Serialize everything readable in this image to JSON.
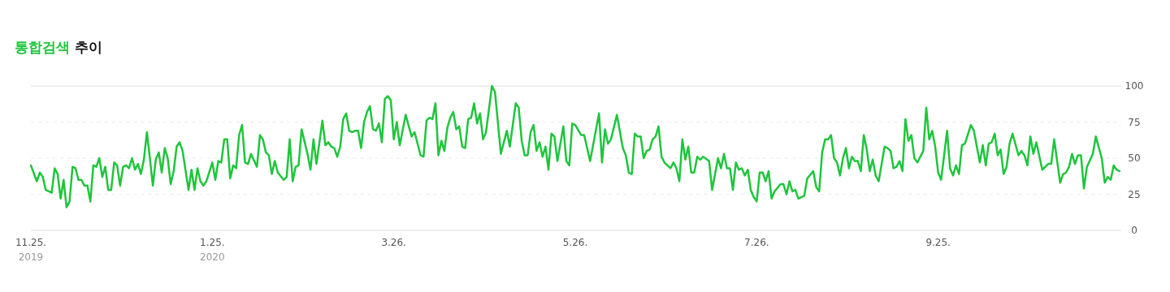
{
  "chart_data": {
    "type": "line",
    "title": "통합검색 추이",
    "grid": "y",
    "line_style": "solid",
    "xlim": [
      "2019-11-25",
      "2020-11-25"
    ],
    "ylim": [
      0,
      100
    ],
    "yticks": [
      0,
      25,
      50,
      75,
      100
    ],
    "xticks": [
      {
        "value": "2019-11-25",
        "label": "11.25.\n2019"
      },
      {
        "value": "2020-01-25",
        "label": "1.25.\n2020"
      },
      {
        "value": "2020-03-26",
        "label": "3.26."
      },
      {
        "value": "2020-05-26",
        "label": "5.26."
      },
      {
        "value": "2020-07-26",
        "label": "7.26."
      },
      {
        "value": "2020-09-25",
        "label": "9.25."
      }
    ],
    "series": [
      {
        "color": "#1ec53c",
        "x": [
          "2019-11-25",
          "2019-11-27",
          "2019-11-28",
          "2019-11-29",
          "2019-11-30",
          "2019-12-01",
          "2019-12-02",
          "2019-12-03",
          "2019-12-04",
          "2019-12-05",
          "2019-12-06",
          "2019-12-07",
          "2019-12-08",
          "2019-12-09",
          "2019-12-10",
          "2019-12-11",
          "2019-12-12",
          "2019-12-13",
          "2019-12-14",
          "2019-12-15",
          "2019-12-16",
          "2019-12-17",
          "2019-12-18",
          "2019-12-19",
          "2019-12-20",
          "2019-12-21",
          "2019-12-22",
          "2019-12-23",
          "2019-12-24",
          "2019-12-25",
          "2019-12-26",
          "2019-12-27",
          "2019-12-28",
          "2019-12-29",
          "2019-12-30",
          "2019-12-31",
          "2020-01-01",
          "2020-01-02",
          "2020-01-03",
          "2020-01-04",
          "2020-01-05",
          "2020-01-06",
          "2020-01-07",
          "2020-01-08",
          "2020-01-09",
          "2020-01-10",
          "2020-01-11",
          "2020-01-12",
          "2020-01-13",
          "2020-01-14",
          "2020-01-15",
          "2020-01-17",
          "2020-01-18",
          "2020-01-19",
          "2020-01-20",
          "2020-01-21",
          "2020-01-22",
          "2020-01-23",
          "2020-01-25",
          "2020-01-26",
          "2020-01-27",
          "2020-01-28",
          "2020-01-29",
          "2020-01-30",
          "2020-01-31",
          "2020-02-01",
          "2020-02-02",
          "2020-02-03",
          "2020-02-04",
          "2020-02-05",
          "2020-02-06",
          "2020-02-07",
          "2020-02-09",
          "2020-02-10",
          "2020-02-11",
          "2020-02-12",
          "2020-02-13",
          "2020-02-14",
          "2020-02-15",
          "2020-02-16",
          "2020-02-18",
          "2020-02-19",
          "2020-02-20",
          "2020-02-21",
          "2020-02-22",
          "2020-02-23",
          "2020-02-24",
          "2020-02-26",
          "2020-02-27",
          "2020-02-28",
          "2020-02-29",
          "2020-03-02",
          "2020-03-03",
          "2020-03-04",
          "2020-03-05",
          "2020-03-06",
          "2020-03-07",
          "2020-03-08",
          "2020-03-09",
          "2020-03-10",
          "2020-03-11",
          "2020-03-12",
          "2020-03-13",
          "2020-03-14",
          "2020-03-15",
          "2020-03-16",
          "2020-03-17",
          "2020-03-18",
          "2020-03-19",
          "2020-03-20",
          "2020-03-21",
          "2020-03-22",
          "2020-03-23",
          "2020-03-24",
          "2020-03-25",
          "2020-03-26",
          "2020-03-27",
          "2020-03-28",
          "2020-03-30",
          "2020-04-01",
          "2020-04-02",
          "2020-04-04",
          "2020-04-05",
          "2020-04-06",
          "2020-04-07",
          "2020-04-08",
          "2020-04-09",
          "2020-04-10",
          "2020-04-11",
          "2020-04-12",
          "2020-04-13",
          "2020-04-14",
          "2020-04-15",
          "2020-04-16",
          "2020-04-17",
          "2020-04-18",
          "2020-04-19",
          "2020-04-20",
          "2020-04-21",
          "2020-04-22",
          "2020-04-23",
          "2020-04-24",
          "2020-04-25",
          "2020-04-26",
          "2020-04-28",
          "2020-04-29",
          "2020-05-01",
          "2020-05-03",
          "2020-05-04",
          "2020-05-06",
          "2020-05-07",
          "2020-05-08",
          "2020-05-09",
          "2020-05-10",
          "2020-05-11",
          "2020-05-12",
          "2020-05-13",
          "2020-05-14",
          "2020-05-15",
          "2020-05-16",
          "2020-05-17",
          "2020-05-18",
          "2020-05-19",
          "2020-05-20",
          "2020-05-22",
          "2020-05-23",
          "2020-05-24",
          "2020-05-25",
          "2020-05-26",
          "2020-05-28",
          "2020-05-29",
          "2020-05-31",
          "2020-06-03",
          "2020-06-04",
          "2020-06-05",
          "2020-06-06",
          "2020-06-07",
          "2020-06-09",
          "2020-06-11",
          "2020-06-12",
          "2020-06-13",
          "2020-06-14",
          "2020-06-15",
          "2020-06-16",
          "2020-06-17",
          "2020-06-18",
          "2020-06-19",
          "2020-06-20",
          "2020-06-21",
          "2020-06-22",
          "2020-06-23",
          "2020-06-24",
          "2020-06-25",
          "2020-06-27",
          "2020-06-28",
          "2020-06-29",
          "2020-06-30",
          "2020-07-01",
          "2020-07-02",
          "2020-07-03",
          "2020-07-04",
          "2020-07-05",
          "2020-07-06",
          "2020-07-07",
          "2020-07-08",
          "2020-07-10",
          "2020-07-11",
          "2020-07-13",
          "2020-07-14",
          "2020-07-15",
          "2020-07-16",
          "2020-07-17",
          "2020-07-18",
          "2020-07-19",
          "2020-07-20",
          "2020-07-21",
          "2020-07-22",
          "2020-07-23",
          "2020-07-24",
          "2020-07-25",
          "2020-07-26",
          "2020-07-27",
          "2020-07-28",
          "2020-07-29",
          "2020-07-30",
          "2020-07-31",
          "2020-08-01",
          "2020-08-03",
          "2020-08-04",
          "2020-08-05",
          "2020-08-06",
          "2020-08-07",
          "2020-08-08",
          "2020-08-09",
          "2020-08-11",
          "2020-08-12",
          "2020-08-14",
          "2020-08-15",
          "2020-08-16",
          "2020-08-17",
          "2020-08-18",
          "2020-08-19",
          "2020-08-20",
          "2020-08-21",
          "2020-08-22",
          "2020-08-23",
          "2020-08-24",
          "2020-08-25",
          "2020-08-26",
          "2020-08-27",
          "2020-08-28",
          "2020-08-29",
          "2020-08-30",
          "2020-08-31",
          "2020-09-01",
          "2020-09-02",
          "2020-09-03",
          "2020-09-04",
          "2020-09-05",
          "2020-09-07",
          "2020-09-08",
          "2020-09-09",
          "2020-09-10",
          "2020-09-11",
          "2020-09-12",
          "2020-09-13",
          "2020-09-14",
          "2020-09-15",
          "2020-09-16",
          "2020-09-17",
          "2020-09-18",
          "2020-09-20",
          "2020-09-21",
          "2020-09-22",
          "2020-09-23",
          "2020-09-24",
          "2020-09-25",
          "2020-09-26",
          "2020-09-28",
          "2020-09-29",
          "2020-09-30",
          "2020-10-01",
          "2020-10-02",
          "2020-10-03",
          "2020-10-04",
          "2020-10-06",
          "2020-10-07",
          "2020-10-09",
          "2020-10-10",
          "2020-10-11",
          "2020-10-12",
          "2020-10-13",
          "2020-10-14",
          "2020-10-15",
          "2020-10-16",
          "2020-10-17",
          "2020-10-18",
          "2020-10-19",
          "2020-10-20",
          "2020-10-22",
          "2020-10-23",
          "2020-10-24",
          "2020-10-25",
          "2020-10-26",
          "2020-10-27",
          "2020-10-28",
          "2020-10-30",
          "2020-11-01",
          "2020-11-02",
          "2020-11-03",
          "2020-11-05",
          "2020-11-06",
          "2020-11-07",
          "2020-11-08",
          "2020-11-09",
          "2020-11-10",
          "2020-11-11",
          "2020-11-12",
          "2020-11-13",
          "2020-11-14",
          "2020-11-16",
          "2020-11-17",
          "2020-11-19",
          "2020-11-20",
          "2020-11-21",
          "2020-11-22",
          "2020-11-23",
          "2020-11-24",
          "2020-11-25"
        ],
        "values": [
          45,
          34,
          40,
          37,
          28,
          27,
          26,
          43,
          39,
          22,
          35,
          16,
          20,
          44,
          43,
          35,
          35,
          31,
          31,
          20,
          45,
          44,
          50,
          37,
          44,
          28,
          28,
          47,
          45,
          31,
          44,
          45,
          43,
          50,
          42,
          46,
          39,
          49,
          68,
          50,
          31,
          49,
          54,
          40,
          57,
          50,
          32,
          41,
          58,
          61,
          55,
          28,
          42,
          28,
          43,
          34,
          31,
          34,
          47,
          35,
          48,
          47,
          63,
          63,
          36,
          45,
          43,
          66,
          73,
          47,
          46,
          53,
          44,
          66,
          63,
          54,
          52,
          39,
          48,
          40,
          35,
          37,
          63,
          34,
          44,
          45,
          70,
          53,
          42,
          63,
          46,
          76,
          59,
          61,
          58,
          57,
          51,
          58,
          77,
          81,
          69,
          68,
          69,
          69,
          57,
          75,
          82,
          86,
          70,
          69,
          74,
          61,
          91,
          93,
          90,
          63,
          75,
          59,
          80,
          65,
          68,
          52,
          51,
          76,
          78,
          77,
          88,
          52,
          62,
          55,
          71,
          78,
          82,
          70,
          72,
          58,
          57,
          77,
          78,
          88,
          74,
          81,
          63,
          68,
          100,
          96,
          53,
          69,
          58,
          88,
          85,
          62,
          52,
          52,
          68,
          73,
          55,
          61,
          51,
          58,
          42,
          67,
          65,
          48,
          72,
          48,
          45,
          74,
          73,
          66,
          66,
          48,
          81,
          47,
          70,
          60,
          63,
          80,
          57,
          52,
          40,
          39,
          67,
          65,
          65,
          50,
          55,
          56,
          63,
          65,
          72,
          51,
          47,
          43,
          47,
          43,
          34,
          63,
          49,
          58,
          40,
          40,
          51,
          49,
          51,
          48,
          28,
          50,
          43,
          53,
          43,
          43,
          28,
          47,
          42,
          43,
          38,
          42,
          28,
          23,
          20,
          40,
          40,
          34,
          41,
          22,
          27,
          32,
          32,
          25,
          34,
          27,
          28,
          22,
          24,
          36,
          41,
          30,
          27,
          54,
          63,
          63,
          66,
          50,
          47,
          38,
          50,
          57,
          43,
          51,
          48,
          48,
          41,
          66,
          56,
          41,
          49,
          38,
          34,
          58,
          57,
          55,
          43,
          44,
          48,
          41,
          77,
          62,
          66,
          50,
          47,
          55,
          85,
          63,
          69,
          58,
          40,
          35,
          69,
          43,
          38,
          45,
          39,
          59,
          60,
          73,
          69,
          47,
          59,
          45,
          60,
          61,
          67,
          52,
          56,
          39,
          44,
          60,
          67,
          52,
          55,
          52,
          45,
          65,
          53,
          61,
          42,
          46,
          46,
          63,
          33,
          39,
          40,
          44,
          53,
          46,
          52,
          52,
          29,
          44,
          53,
          65,
          50,
          33,
          37,
          35,
          45,
          42,
          41
        ]
      }
    ]
  }
}
